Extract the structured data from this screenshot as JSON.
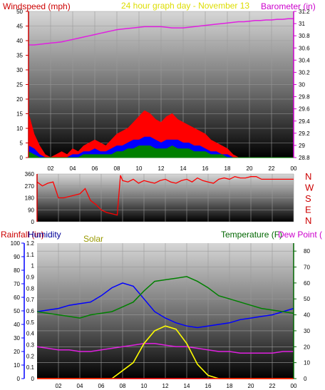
{
  "top_panel": {
    "title_left": "Windspeed (mph)",
    "title_center": "24 hour graph day - November 13",
    "title_right": "Barometer (in)"
  },
  "direction_panel": {
    "compass": [
      "N",
      "W",
      "S",
      "E",
      "N"
    ]
  },
  "bottom_panel": {
    "title_rainfall": "Rainfall (in)",
    "title_humidity": "Humidity",
    "title_solar": "Solar",
    "title_temperature": "Temperature (F)",
    "title_dewpoint": "Dew Point ("
  },
  "colors": {
    "wind": "#ff0000",
    "wind_avg": "#0000ff",
    "wind_low": "#008000",
    "barometer": "#e020e0",
    "direction": "#ff0000",
    "humidity": "#0000ff",
    "solar": "#ffff00",
    "temperature": "#008000",
    "dewpoint": "#e020e0",
    "rainfall": "#ff0000",
    "title_red": "#cc0000",
    "title_olive": "#999900",
    "title_green": "#006600",
    "title_purple": "#cc00cc",
    "title_blue": "#000099"
  },
  "chart_data": [
    {
      "type": "area",
      "name": "windspeed-barometer",
      "x_ticks": [
        "02",
        "04",
        "06",
        "08",
        "10",
        "12",
        "14",
        "16",
        "18",
        "20",
        "22",
        "00"
      ],
      "y_left": {
        "label": "Windspeed (mph)",
        "ylim": [
          0,
          50
        ],
        "ticks": [
          0,
          5,
          10,
          15,
          20,
          25,
          30,
          35,
          40,
          45,
          50
        ]
      },
      "y_right": {
        "label": "Barometer (in)",
        "ylim": [
          28.8,
          31.2
        ],
        "ticks": [
          "28.8",
          "29",
          "29.2",
          "29.4",
          "29.6",
          "29.8",
          "30",
          "30.2",
          "30.4",
          "30.6",
          "30.8",
          "31",
          "31.2"
        ]
      },
      "x": [
        0,
        0.5,
        1,
        1.5,
        2,
        2.5,
        3,
        3.5,
        4,
        4.5,
        5,
        5.5,
        6,
        6.5,
        7,
        7.5,
        8,
        8.5,
        9,
        9.5,
        10,
        10.5,
        11,
        11.5,
        12,
        12.5,
        13,
        13.5,
        14,
        14.5,
        15,
        15.5,
        16,
        16.5,
        17,
        17.5,
        18,
        18.5,
        19,
        19.5,
        20,
        20.5,
        21,
        21.5,
        22,
        22.5,
        23,
        23.5,
        24
      ],
      "series": [
        {
          "values": [
            15,
            8,
            4,
            1,
            0,
            1,
            2,
            1,
            3,
            2,
            4,
            5,
            6,
            5,
            4,
            6,
            8,
            9,
            10,
            12,
            14,
            16,
            15,
            13,
            12,
            14,
            15,
            13,
            12,
            11,
            10,
            9,
            8,
            6,
            5,
            4,
            3,
            1,
            0,
            0,
            0,
            0,
            0,
            0,
            0,
            0,
            0,
            0,
            0
          ]
        },
        {
          "values": [
            4,
            3,
            1,
            0,
            0,
            0,
            0,
            0,
            1,
            1,
            2,
            2,
            3,
            2,
            2,
            3,
            4,
            4,
            5,
            6,
            6,
            7,
            7,
            6,
            5,
            6,
            6,
            6,
            5,
            5,
            4,
            4,
            3,
            2,
            2,
            1,
            1,
            0,
            0,
            0,
            0,
            0,
            0,
            0,
            0,
            0,
            0,
            0,
            0
          ]
        },
        {
          "values": [
            2,
            1,
            0,
            0,
            0,
            0,
            0,
            0,
            0,
            0,
            1,
            1,
            1,
            1,
            1,
            1,
            2,
            2,
            3,
            3,
            4,
            4,
            4,
            3,
            3,
            3,
            4,
            3,
            3,
            3,
            2,
            2,
            2,
            1,
            1,
            1,
            0,
            0,
            0,
            0,
            0,
            0,
            0,
            0,
            0,
            0,
            0,
            0,
            0
          ]
        },
        {
          "values": [
            30.65,
            30.65,
            30.66,
            30.67,
            30.68,
            30.69,
            30.7,
            30.72,
            30.74,
            30.76,
            30.78,
            30.8,
            30.82,
            30.84,
            30.86,
            30.88,
            30.9,
            30.91,
            30.92,
            30.93,
            30.94,
            30.95,
            30.95,
            30.95,
            30.95,
            30.94,
            30.93,
            30.93,
            30.93,
            30.94,
            30.95,
            30.96,
            30.97,
            30.98,
            30.99,
            31.0,
            31.01,
            31.02,
            31.03,
            31.03,
            31.04,
            31.05,
            31.05,
            31.06,
            31.06,
            31.07,
            31.07,
            31.08,
            31.08
          ]
        }
      ]
    },
    {
      "type": "line",
      "name": "wind-direction",
      "ylim": [
        0,
        360
      ],
      "y_ticks": [
        0,
        90,
        180,
        270,
        360
      ],
      "x_ticks": [
        "02",
        "04",
        "06",
        "08",
        "10",
        "12",
        "14",
        "16",
        "18",
        "20",
        "22",
        "00"
      ],
      "x": [
        0,
        0.5,
        1,
        1.5,
        2,
        2.5,
        3,
        3.5,
        4,
        4.5,
        5,
        5.5,
        6,
        6.5,
        7,
        7.5,
        7.8,
        8,
        8.5,
        9,
        9.5,
        10,
        10.5,
        11,
        11.5,
        12,
        12.5,
        13,
        13.5,
        14,
        14.5,
        15,
        15.5,
        16,
        16.5,
        17,
        17.5,
        18,
        18.5,
        19,
        19.5,
        20,
        20.5,
        21,
        21.5,
        22,
        22.5,
        23,
        23.5,
        24
      ],
      "values": [
        300,
        270,
        290,
        300,
        180,
        180,
        190,
        200,
        210,
        250,
        160,
        130,
        90,
        70,
        60,
        50,
        350,
        310,
        300,
        320,
        290,
        310,
        300,
        290,
        310,
        320,
        300,
        290,
        310,
        320,
        300,
        330,
        310,
        300,
        290,
        320,
        330,
        320,
        340,
        330,
        330,
        340,
        340,
        320,
        320,
        320,
        320,
        320,
        320,
        320
      ]
    },
    {
      "type": "line",
      "name": "rain-humidity-solar-temperature",
      "x_ticks": [
        "02",
        "04",
        "06",
        "08",
        "10",
        "12",
        "14",
        "16",
        "18",
        "20",
        "22",
        "00"
      ],
      "y_rain": {
        "label": "Rainfall (in)",
        "ylim": [
          0,
          100
        ],
        "ticks": [
          0,
          10,
          20,
          30,
          40,
          50,
          60,
          70,
          80,
          90,
          100
        ]
      },
      "y_humidity": {
        "label": "Humidity",
        "ylim": [
          0,
          1.2
        ],
        "ticks": [
          "0",
          "0.1",
          "0.2",
          "0.3",
          "0.4",
          "0.5",
          "0.6",
          "0.7",
          "0.8",
          "0.9",
          "1",
          "1.1",
          "1.2"
        ]
      },
      "y_temp": {
        "label": "Temperature (F)",
        "ylim": [
          0,
          85
        ],
        "ticks": [
          0,
          10,
          20,
          30,
          40,
          50,
          60,
          70,
          80
        ]
      },
      "x": [
        0,
        1,
        2,
        3,
        4,
        5,
        6,
        7,
        8,
        9,
        10,
        11,
        12,
        13,
        14,
        15,
        16,
        17,
        18,
        19,
        20,
        21,
        22,
        23,
        24
      ],
      "series": [
        {
          "values": [
            42,
            43,
            44,
            46,
            47,
            48,
            52,
            57,
            60,
            58,
            50,
            42,
            38,
            35,
            33,
            32,
            33,
            34,
            35,
            37,
            38,
            39,
            40,
            42,
            44
          ]
        },
        {
          "values": [
            42,
            41,
            40,
            39,
            38,
            40,
            41,
            42,
            45,
            48,
            55,
            61,
            62,
            63,
            64,
            61,
            57,
            52,
            50,
            48,
            46,
            44,
            43,
            42,
            41
          ]
        },
        {
          "values": [
            20,
            19,
            18,
            18,
            17,
            17,
            18,
            19,
            20,
            21,
            22,
            22,
            21,
            20,
            20,
            19,
            18,
            17,
            17,
            16,
            16,
            16,
            16,
            17,
            17
          ]
        },
        {
          "values": [
            0,
            0,
            0,
            0,
            0,
            0,
            0,
            0,
            5,
            10,
            22,
            30,
            33,
            31,
            22,
            9,
            2,
            0,
            0,
            0,
            0,
            0,
            0,
            0,
            0
          ]
        },
        {
          "values": [
            0,
            0,
            0,
            0,
            0,
            0,
            0,
            0,
            0,
            0,
            0,
            0,
            0,
            0,
            0,
            0,
            0,
            0,
            0,
            0,
            0,
            0,
            0,
            0,
            0
          ]
        }
      ]
    }
  ]
}
